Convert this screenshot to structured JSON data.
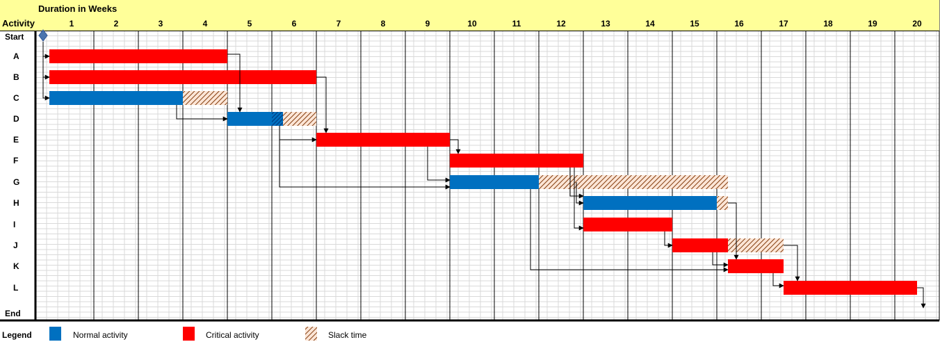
{
  "header": {
    "activity_label": "Activity",
    "duration_title": "Duration in Weeks"
  },
  "colors": {
    "normal": "#0070C0",
    "critical": "#FF0000",
    "slack_line": "#C55A11",
    "header_fill": "#FFFF99",
    "milestone": "#4A74AE",
    "grid_minor": "#D9D9D9",
    "grid_major": "#000000"
  },
  "legend": {
    "title": "Legend",
    "normal_label": "Normal activity",
    "critical_label": "Critical activity",
    "slack_label": "Slack time"
  },
  "chart_data": {
    "type": "gantt",
    "weeks": [
      "1",
      "2",
      "3",
      "4",
      "5",
      "6",
      "7",
      "8",
      "9",
      "10",
      "11",
      "12",
      "13",
      "14",
      "15",
      "16",
      "17",
      "18",
      "19",
      "20"
    ],
    "rows": [
      "Start",
      "A",
      "B",
      "C",
      "D",
      "E",
      "F",
      "G",
      "H",
      "I",
      "J",
      "K",
      "L",
      "End"
    ],
    "milestones": [
      {
        "row": "Start",
        "week": 0
      },
      {
        "row": "End",
        "week": 20
      }
    ],
    "activities": [
      {
        "name": "A",
        "start": 0,
        "duration": 4,
        "critical": true,
        "slack": 0
      },
      {
        "name": "B",
        "start": 0,
        "duration": 6,
        "critical": true,
        "slack": 0
      },
      {
        "name": "C",
        "start": 0,
        "duration": 3,
        "critical": false,
        "slack": 1
      },
      {
        "name": "D",
        "start": 4,
        "duration": 1,
        "critical": false,
        "slack": 1
      },
      {
        "name": "E",
        "start": 6,
        "duration": 3,
        "critical": true,
        "slack": 0
      },
      {
        "name": "F",
        "start": 9,
        "duration": 3,
        "critical": true,
        "slack": 0
      },
      {
        "name": "G",
        "start": 9,
        "duration": 2,
        "critical": false,
        "slack": 4.25
      },
      {
        "name": "H",
        "start": 12,
        "duration": 3,
        "critical": false,
        "slack": 0.25
      },
      {
        "name": "I",
        "start": 12,
        "duration": 2,
        "critical": true,
        "slack": 0
      },
      {
        "name": "J",
        "start": 14,
        "duration": 1.25,
        "critical": true,
        "slack": 1.25
      },
      {
        "name": "K",
        "start": 15.25,
        "duration": 1.25,
        "critical": true,
        "slack": 0
      },
      {
        "name": "L",
        "start": 16.5,
        "duration": 3,
        "critical": true,
        "slack": 0
      }
    ],
    "dependencies": [
      [
        "Start",
        "A"
      ],
      [
        "Start",
        "B"
      ],
      [
        "Start",
        "C"
      ],
      [
        "A",
        "D"
      ],
      [
        "C",
        "D"
      ],
      [
        "B",
        "E"
      ],
      [
        "D",
        "E"
      ],
      [
        "D",
        "G"
      ],
      [
        "E",
        "F"
      ],
      [
        "E",
        "G"
      ],
      [
        "F",
        "H"
      ],
      [
        "F",
        "I"
      ],
      [
        "G",
        "H"
      ],
      [
        "I",
        "J"
      ],
      [
        "H",
        "K"
      ],
      [
        "J",
        "K"
      ],
      [
        "G",
        "K"
      ],
      [
        "K",
        "L"
      ],
      [
        "L",
        "End"
      ]
    ]
  }
}
